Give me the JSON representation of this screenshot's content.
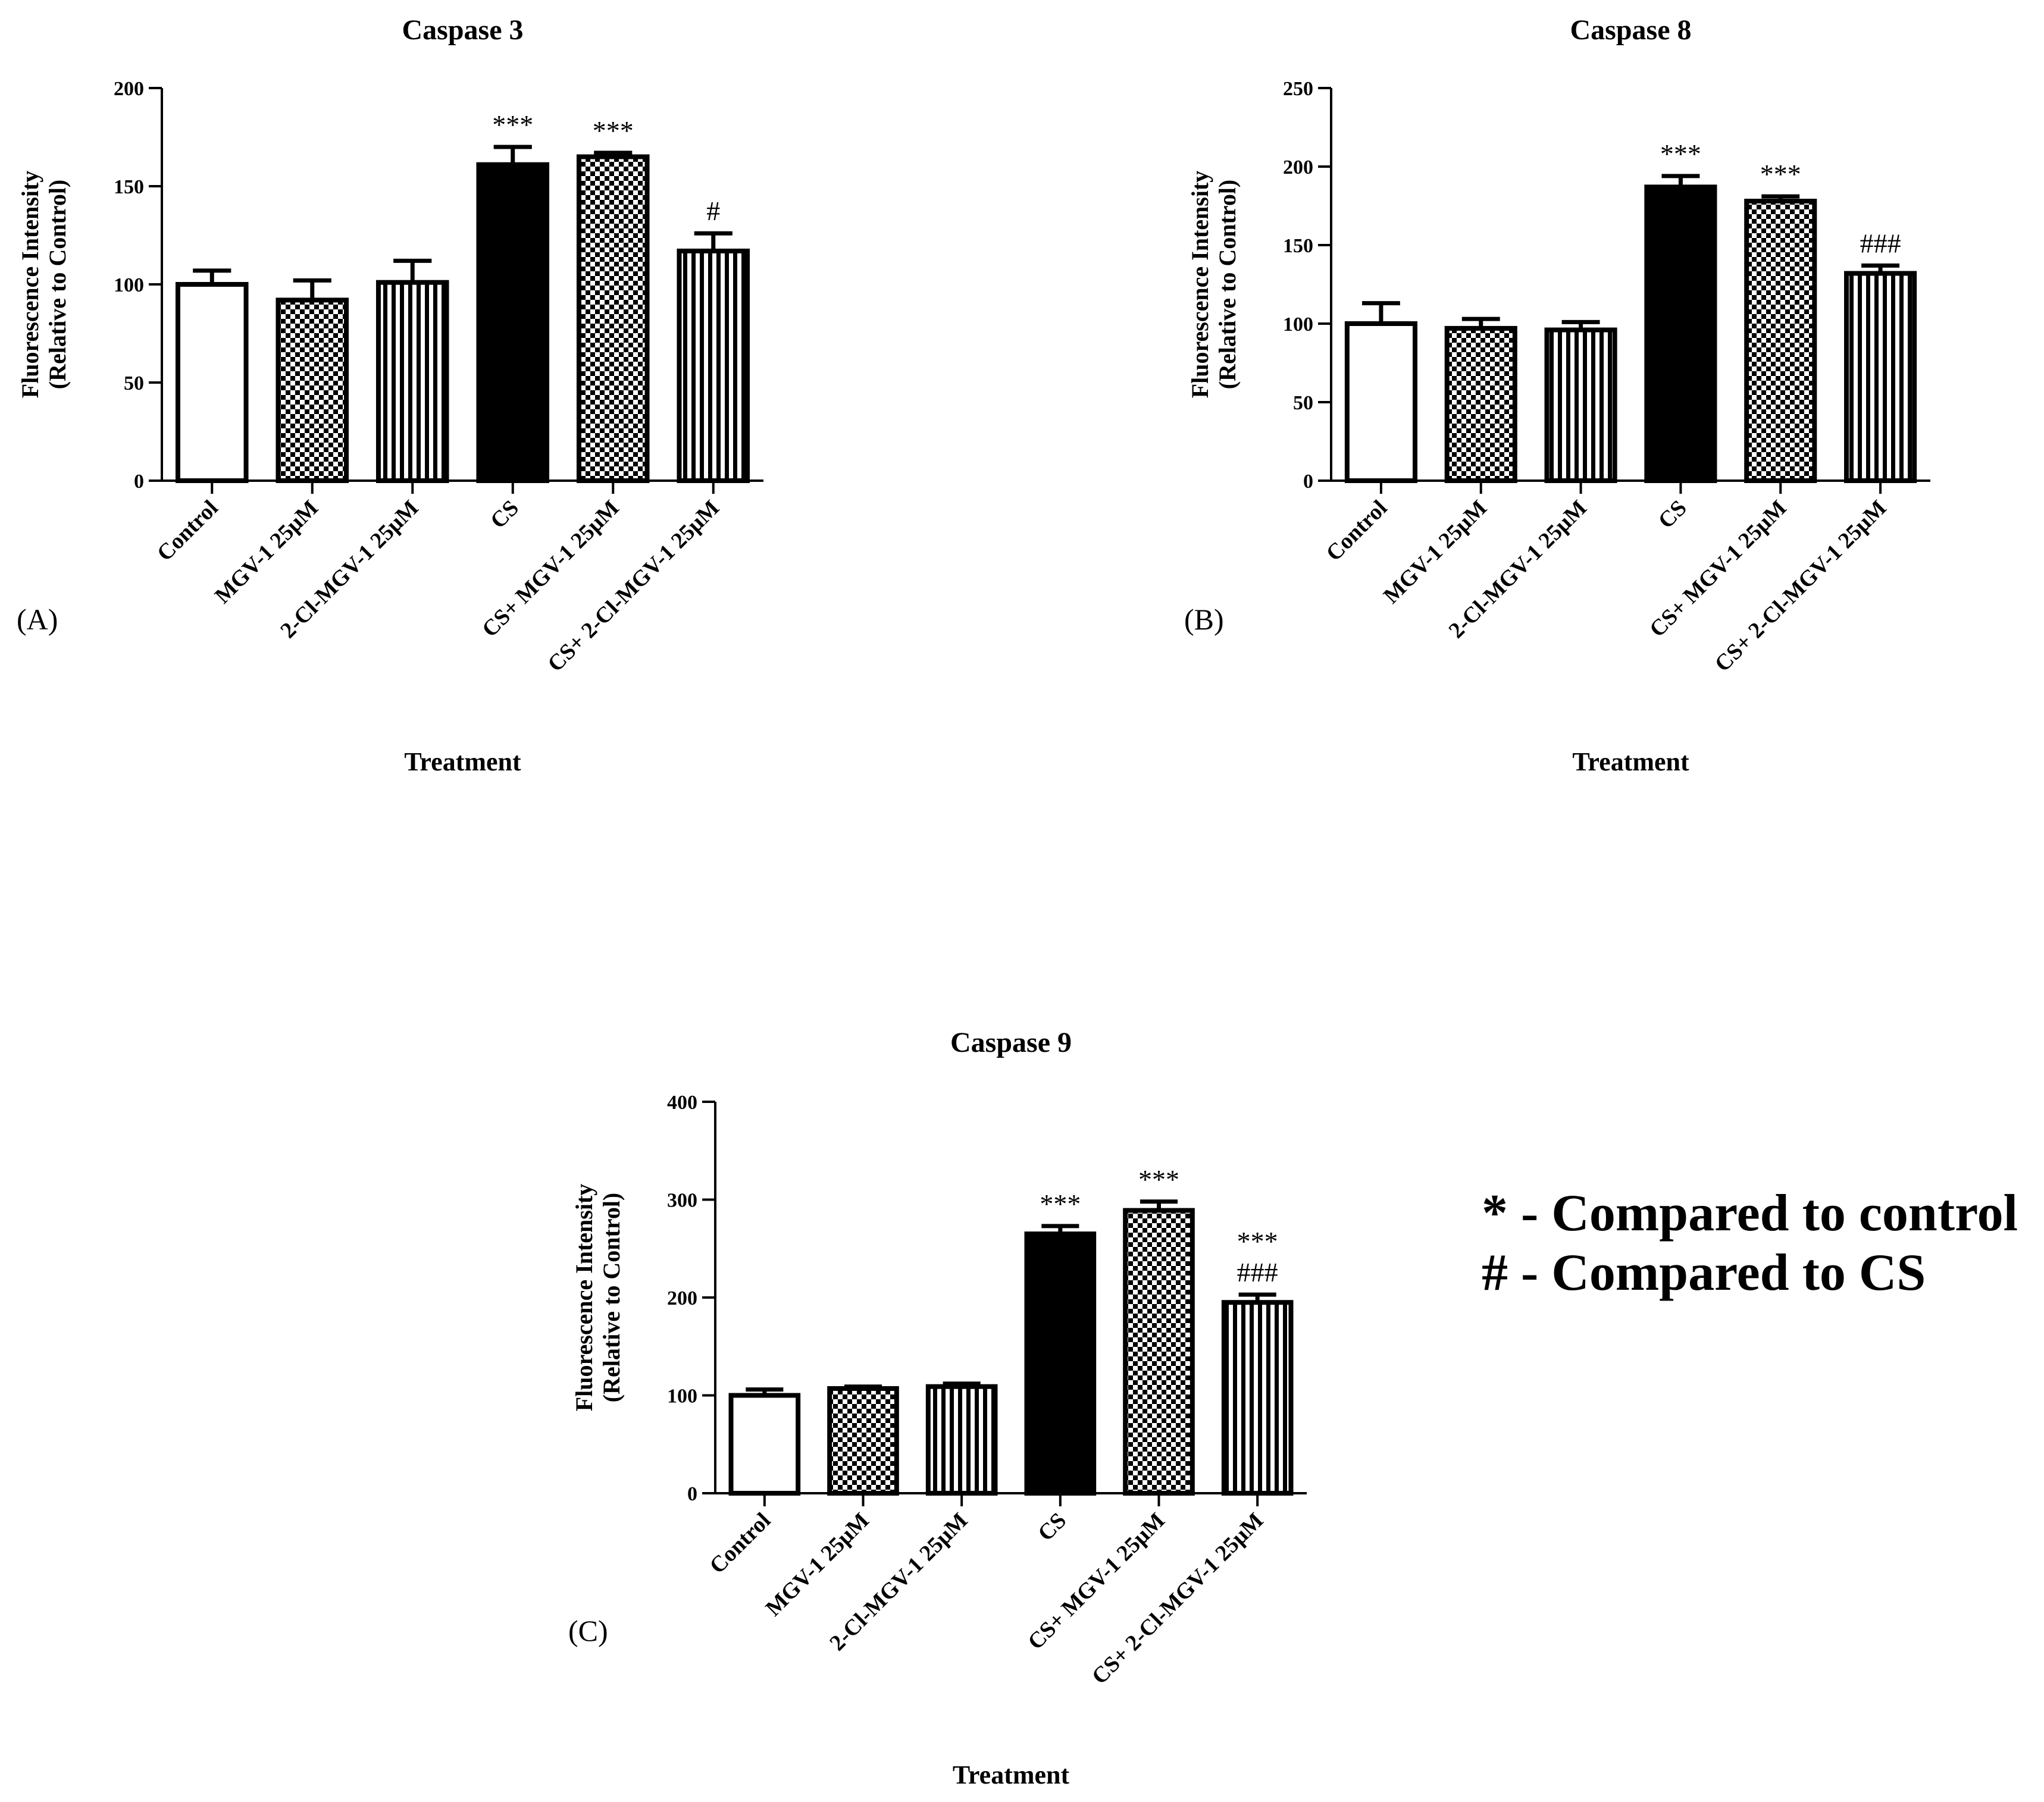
{
  "chart_data": [
    {
      "type": "bar",
      "panel": "(A)",
      "title": "Caspase 3",
      "xlabel": "Treatment",
      "ylabel": [
        "Fluorescence Intensity",
        "(Relative to Control)"
      ],
      "ylim": [
        0,
        200
      ],
      "yticks": [
        0,
        50,
        100,
        150,
        200
      ],
      "categories": [
        "Control",
        "MGV-1 25µM",
        "2-Cl-MGV-1 25µM",
        "CS",
        "CS+ MGV-1 25µM",
        "CS+ 2-Cl-MGV-1 25µM"
      ],
      "values": [
        100,
        92,
        101,
        161,
        165,
        117
      ],
      "errors": [
        7,
        10,
        11,
        9,
        2,
        9
      ],
      "patterns": [
        "open",
        "checker",
        "stripes",
        "solid",
        "checker",
        "stripes"
      ],
      "significance": [
        "",
        "",
        "",
        "***",
        "***",
        "#"
      ]
    },
    {
      "type": "bar",
      "panel": "(B)",
      "title": "Caspase 8",
      "xlabel": "Treatment",
      "ylabel": [
        "Fluorescence Intensity",
        "(Relative to Control)"
      ],
      "ylim": [
        0,
        250
      ],
      "yticks": [
        0,
        50,
        100,
        150,
        200,
        250
      ],
      "categories": [
        "Control",
        "MGV-1 25µM",
        "2-Cl-MGV-1 25µM",
        "CS",
        "CS+ MGV-1 25µM",
        "CS+ 2-Cl-MGV-1 25µM"
      ],
      "values": [
        100,
        97,
        96,
        187,
        178,
        132
      ],
      "errors": [
        13,
        6,
        5,
        7,
        3,
        5
      ],
      "patterns": [
        "open",
        "checker",
        "stripes",
        "solid",
        "checker",
        "stripes"
      ],
      "significance": [
        "",
        "",
        "",
        "***",
        "***",
        "###"
      ]
    },
    {
      "type": "bar",
      "panel": "(C)",
      "title": "Caspase 9",
      "xlabel": "Treatment",
      "ylabel": [
        "Fluorescence Intensity",
        "(Relative to Control)"
      ],
      "ylim": [
        0,
        400
      ],
      "yticks": [
        0,
        100,
        200,
        300,
        400
      ],
      "categories": [
        "Control",
        "MGV-1 25µM",
        "2-Cl-MGV-1 25µM",
        "CS",
        "CS+ MGV-1 25µM",
        "CS+ 2-Cl-MGV-1 25µM"
      ],
      "values": [
        100,
        107,
        109,
        265,
        289,
        195
      ],
      "errors": [
        6,
        2,
        3,
        8,
        9,
        8
      ],
      "patterns": [
        "open",
        "checker",
        "stripes",
        "solid",
        "checker",
        "stripes"
      ],
      "significance": [
        "",
        "",
        "",
        "***",
        "***",
        "***\n###"
      ]
    }
  ],
  "legend": {
    "lines": [
      "* - Compared to control",
      "# - Compared to CS"
    ]
  }
}
